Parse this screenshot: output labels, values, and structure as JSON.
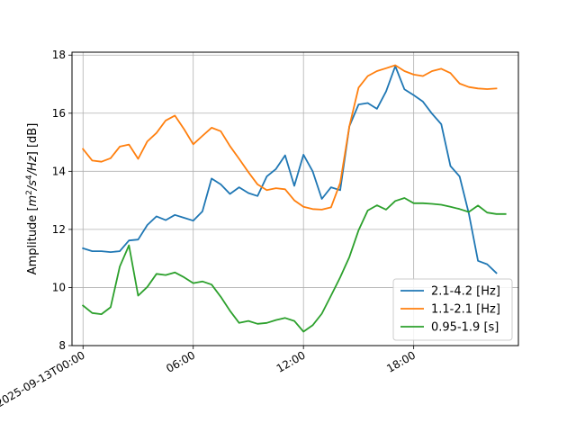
{
  "chart_data": {
    "type": "line",
    "title": "",
    "xlabel": "",
    "ylabel": "Amplitude [m²/s⁴/Hz] [dB]",
    "ylabel_parts": {
      "base": "Amplitude [",
      "m": "m",
      "e1": "2",
      "s": "/s",
      "e2": "4",
      "hz": "/Hz",
      "tail": "] [dB]"
    },
    "x_start_date": "2025-09-13",
    "xlim": [
      -0.6,
      23.7
    ],
    "ylim": [
      8,
      18.1
    ],
    "x_ticks": [
      {
        "value": 0,
        "label": "2025-09-13T00:00"
      },
      {
        "value": 6,
        "label": "06:00"
      },
      {
        "value": 12,
        "label": "12:00"
      },
      {
        "value": 18,
        "label": "18:00"
      }
    ],
    "y_ticks": [
      {
        "value": 8,
        "label": "8"
      },
      {
        "value": 10,
        "label": "10"
      },
      {
        "value": 12,
        "label": "12"
      },
      {
        "value": 14,
        "label": "14"
      },
      {
        "value": 16,
        "label": "16"
      },
      {
        "value": 18,
        "label": "18"
      }
    ],
    "grid": true,
    "legend_position": "lower-right",
    "x": [
      0,
      0.5,
      1,
      1.5,
      2,
      2.5,
      3,
      3.5,
      4,
      4.5,
      5,
      5.5,
      6,
      6.5,
      7,
      7.5,
      8,
      8.5,
      9,
      9.5,
      10,
      10.5,
      11,
      11.5,
      12,
      12.5,
      13,
      13.5,
      14,
      14.5,
      15,
      15.5,
      16,
      16.5,
      17,
      17.5,
      18,
      18.5,
      19,
      19.5,
      20,
      20.5,
      21,
      21.5,
      22,
      22.5,
      23
    ],
    "series": [
      {
        "name": "2.1-4.2 [Hz]",
        "color": "#1f77b4",
        "values": [
          11.35,
          11.25,
          11.25,
          11.22,
          11.25,
          11.62,
          11.65,
          12.15,
          12.45,
          12.32,
          12.5,
          12.4,
          12.3,
          12.62,
          13.75,
          13.55,
          13.22,
          13.45,
          13.25,
          13.15,
          13.82,
          14.08,
          14.55,
          13.5,
          14.57,
          14.0,
          13.05,
          13.45,
          13.35,
          15.55,
          16.3,
          16.35,
          16.15,
          16.75,
          17.62,
          16.82,
          16.62,
          16.4,
          15.98,
          15.62,
          14.18,
          13.82,
          12.55,
          10.92,
          10.8,
          10.5,
          null
        ]
      },
      {
        "name": "1.1-2.1 [Hz]",
        "color": "#ff7f0e",
        "values": [
          14.77,
          14.37,
          14.33,
          14.45,
          14.85,
          14.92,
          14.43,
          15.03,
          15.32,
          15.75,
          15.92,
          15.45,
          14.93,
          15.22,
          15.5,
          15.38,
          14.87,
          14.43,
          13.97,
          13.55,
          13.35,
          13.42,
          13.38,
          13.0,
          12.78,
          12.7,
          12.68,
          12.76,
          13.6,
          15.55,
          16.88,
          17.28,
          17.45,
          17.55,
          17.65,
          17.45,
          17.33,
          17.28,
          17.45,
          17.53,
          17.38,
          17.02,
          16.9,
          16.85,
          16.83,
          16.85,
          null
        ]
      },
      {
        "name": "0.95-1.9 [s]",
        "color": "#2ca02c",
        "values": [
          9.38,
          9.12,
          9.08,
          9.32,
          10.72,
          11.45,
          9.72,
          10.02,
          10.47,
          10.43,
          10.52,
          10.35,
          10.15,
          10.21,
          10.1,
          9.68,
          9.2,
          8.78,
          8.85,
          8.75,
          8.78,
          8.88,
          8.95,
          8.85,
          8.48,
          8.7,
          9.1,
          9.72,
          10.35,
          11.05,
          11.97,
          12.65,
          12.83,
          12.68,
          12.98,
          13.08,
          12.9,
          12.9,
          12.88,
          12.85,
          12.78,
          12.7,
          12.6,
          12.82,
          12.58,
          12.53,
          12.53
        ]
      }
    ]
  }
}
